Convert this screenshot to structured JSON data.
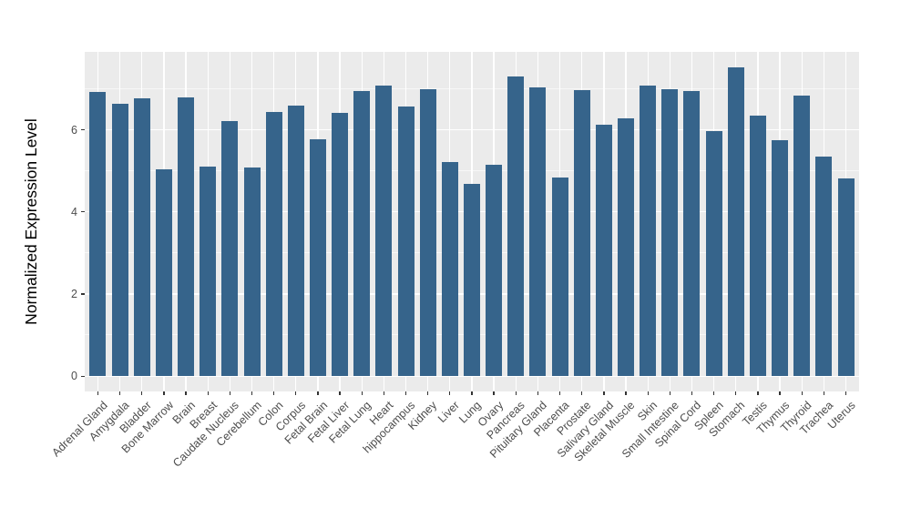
{
  "chart_data": {
    "type": "bar",
    "title": "",
    "xlabel": "",
    "ylabel": "Normalized Expression Level",
    "categories": [
      "Adrenal Gland",
      "Amygdala",
      "Bladder",
      "Bone Marrow",
      "Brain",
      "Breast",
      "Caudate Nucleus",
      "Cerebellum",
      "Colon",
      "Corpus",
      "Fetal Brain",
      "Fetal Liver",
      "Fetal Lung",
      "Heart",
      "hippocampus",
      "Kidney",
      "Liver",
      "Lung",
      "Ovary",
      "Pancreas",
      "Pituitary Gland",
      "Placenta",
      "Prostate",
      "Salivary Gland",
      "Skeletal Muscle",
      "Skin",
      "Small Intestine",
      "Spinal Cord",
      "Spleen",
      "Stomach",
      "Testis",
      "Thymus",
      "Thyroid",
      "Trachea",
      "Uterus"
    ],
    "values": [
      6.91,
      6.61,
      6.75,
      5.02,
      6.77,
      5.08,
      6.19,
      5.07,
      6.42,
      6.58,
      5.76,
      6.4,
      6.93,
      7.06,
      6.56,
      6.97,
      5.21,
      4.67,
      5.13,
      7.28,
      7.02,
      4.82,
      6.96,
      6.12,
      6.26,
      7.07,
      6.97,
      6.92,
      5.95,
      7.51,
      6.32,
      5.73,
      6.82,
      5.33,
      4.8
    ],
    "yticks": [
      0,
      2,
      4,
      6
    ],
    "minor_gridlines": [
      1,
      3,
      5,
      7
    ],
    "ylim": [
      0,
      7.88
    ],
    "grid": "on",
    "legend": "none",
    "colors": {
      "bar_fill": "#36648B",
      "panel_background": "#EBEBEB",
      "grid_major": "#FFFFFF",
      "figure_background": "#FFFFFF",
      "tick_text": "#4D4D4D",
      "tick_mark": "#333333"
    }
  }
}
